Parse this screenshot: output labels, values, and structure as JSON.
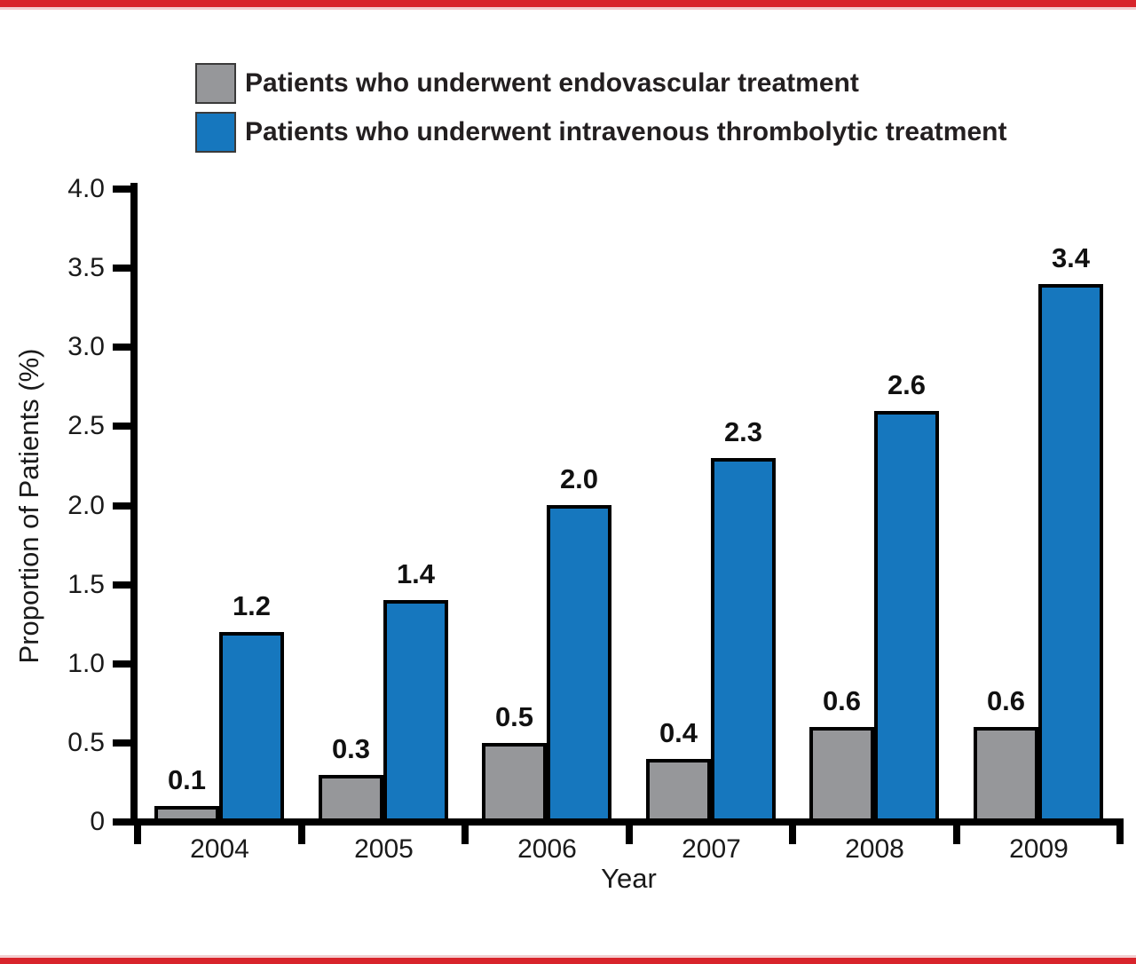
{
  "colors": {
    "accent_red": "#d8242b",
    "accent_red_light": "#f3cfd1",
    "endovascular_gray": "#96979a",
    "thrombolytic_blue": "#1677be",
    "axis_black": "#000000"
  },
  "chart_data": {
    "type": "bar",
    "title": "",
    "xlabel": "Year",
    "ylabel": "Proportion of Patients (%)",
    "categories": [
      "2004",
      "2005",
      "2006",
      "2007",
      "2008",
      "2009"
    ],
    "series": [
      {
        "name": "Patients who underwent endovascular treatment",
        "color": "#96979a",
        "values": [
          0.1,
          0.3,
          0.5,
          0.4,
          0.6,
          0.6
        ]
      },
      {
        "name": "Patients who underwent intravenous thrombolytic treatment",
        "color": "#1677be",
        "values": [
          1.2,
          1.4,
          2.0,
          2.3,
          2.6,
          3.4
        ]
      }
    ],
    "value_labels_shown": true,
    "ylim": [
      0,
      4
    ],
    "y_ticks": [
      {
        "value": 0,
        "label": "0"
      },
      {
        "value": 0.5,
        "label": "0.5"
      },
      {
        "value": 1.0,
        "label": "1.0"
      },
      {
        "value": 1.5,
        "label": "1.5"
      },
      {
        "value": 2.0,
        "label": "2.0"
      },
      {
        "value": 2.5,
        "label": "2.5"
      },
      {
        "value": 3.0,
        "label": "3.0"
      },
      {
        "value": 3.5,
        "label": "3.5"
      },
      {
        "value": 4.0,
        "label": "4.0"
      }
    ],
    "grid": false,
    "legend_position": "top-left"
  }
}
